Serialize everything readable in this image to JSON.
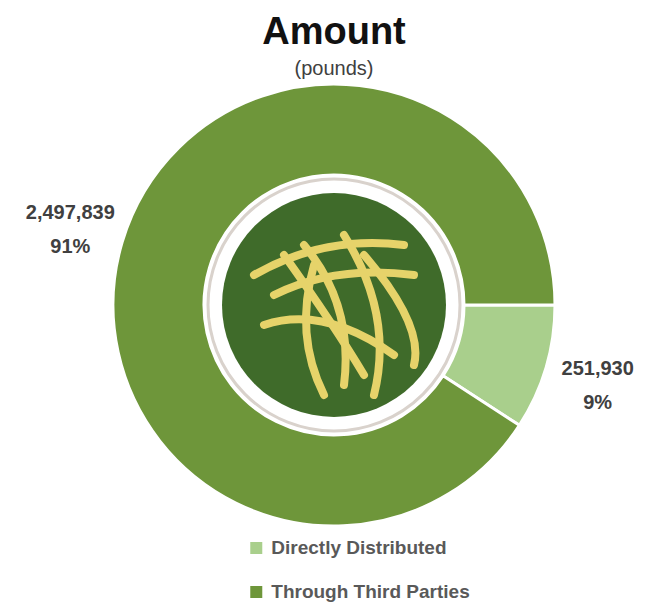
{
  "chart_data": {
    "type": "pie",
    "title": "Amount",
    "subtitle": "(pounds)",
    "categories": [
      "Directly Distributed",
      "Through Third Parties"
    ],
    "values": [
      251930,
      2497839
    ],
    "value_labels": [
      "251,930",
      "2,497,839"
    ],
    "percents": [
      9,
      91
    ],
    "percent_labels": [
      "9%",
      "91%"
    ],
    "colors": [
      "#a9cf8c",
      "#6e963a"
    ],
    "data_labels": true,
    "legend": "bottom"
  }
}
